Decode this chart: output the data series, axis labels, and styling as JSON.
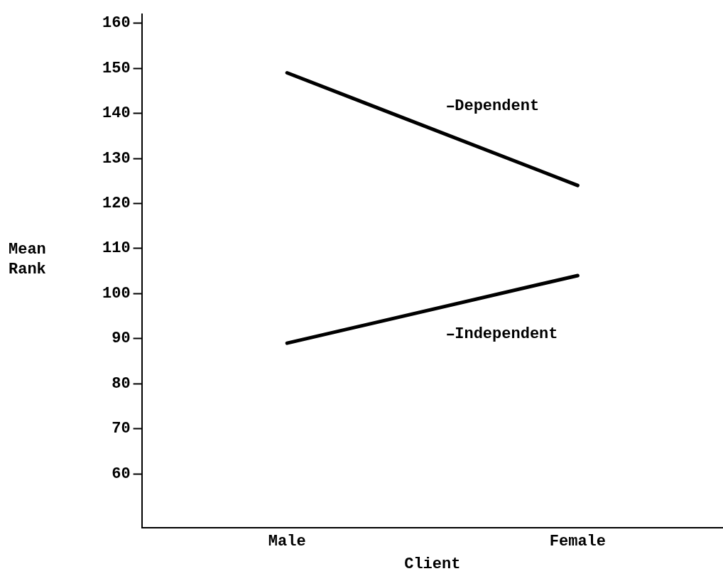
{
  "chart_data": {
    "type": "line",
    "xlabel": "Client",
    "ylabel": "Mean\nRank",
    "categories": [
      "Male",
      "Female"
    ],
    "series": [
      {
        "name": "Dependent",
        "color": "#000000",
        "values": [
          149,
          124
        ]
      },
      {
        "name": "Independent",
        "color": "#000000",
        "values": [
          89,
          104
        ]
      }
    ],
    "ylim": [
      48,
      162
    ],
    "yticks": [
      60,
      70,
      80,
      90,
      100,
      110,
      120,
      130,
      140,
      150,
      160
    ],
    "grid": false,
    "legend": "right",
    "marker": "none",
    "line_style": "solid"
  }
}
